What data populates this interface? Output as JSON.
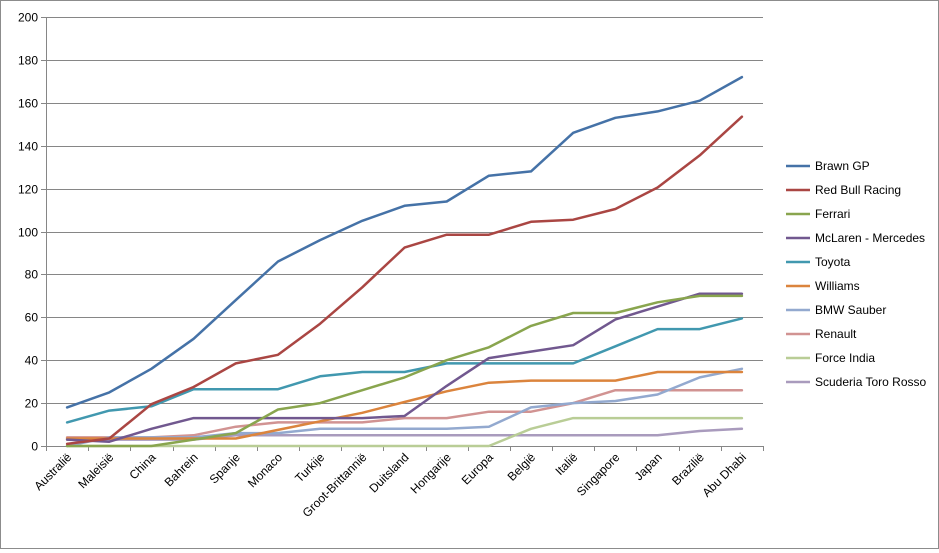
{
  "chart_data": {
    "type": "line",
    "title": "",
    "xlabel": "",
    "ylabel": "",
    "ylim": [
      0,
      200
    ],
    "yticks": [
      0,
      20,
      40,
      60,
      80,
      100,
      120,
      140,
      160,
      180,
      200
    ],
    "grid": "horizontal",
    "legend": "right",
    "categories": [
      "Australië",
      "Maleisië",
      "China",
      "Bahrein",
      "Spanje",
      "Monaco",
      "Turkije",
      "Groot-Brittannië",
      "Duitsland",
      "Hongarije",
      "Europa",
      "België",
      "Italië",
      "Singapore",
      "Japan",
      "Brazilië",
      "Abu Dhabi"
    ],
    "series": [
      {
        "name": "Brawn GP",
        "color": "#4572A7",
        "values": [
          18,
          25,
          36,
          50,
          68,
          86,
          96,
          105,
          112,
          114,
          126,
          128,
          146,
          153,
          156,
          161,
          172
        ]
      },
      {
        "name": "Red Bull Racing",
        "color": "#AA4643",
        "values": [
          1,
          3.5,
          19.5,
          27.5,
          38.5,
          42.5,
          57,
          74,
          92.5,
          98.5,
          98.5,
          104.5,
          105.5,
          110.5,
          120.5,
          135.5,
          153.5
        ]
      },
      {
        "name": "Ferrari",
        "color": "#89A54E",
        "values": [
          0,
          0,
          0,
          3,
          6,
          17,
          20,
          26,
          32,
          40,
          46,
          56,
          62,
          62,
          67,
          70,
          70
        ]
      },
      {
        "name": "McLaren - Mercedes",
        "color": "#71588F",
        "values": [
          3,
          2,
          8,
          13,
          13,
          13,
          13,
          13,
          14,
          28,
          41,
          44,
          47,
          59,
          65,
          71,
          71
        ]
      },
      {
        "name": "Toyota",
        "color": "#4198AF",
        "values": [
          11,
          16.5,
          18.5,
          26.5,
          26.5,
          26.5,
          32.5,
          34.5,
          34.5,
          38.5,
          38.5,
          38.5,
          38.5,
          46.5,
          54.5,
          54.5,
          59.5
        ]
      },
      {
        "name": "Williams",
        "color": "#DB843D",
        "values": [
          3.5,
          3.5,
          3.5,
          3.5,
          3.5,
          7.5,
          11.5,
          15.5,
          20.5,
          25.5,
          29.5,
          30.5,
          30.5,
          30.5,
          34.5,
          34.5,
          34.5
        ]
      },
      {
        "name": "BMW Sauber",
        "color": "#93A9CF",
        "values": [
          0,
          4,
          4,
          4,
          6,
          6,
          8,
          8,
          8,
          8,
          9,
          18,
          20,
          21,
          24,
          32,
          36
        ]
      },
      {
        "name": "Renault",
        "color": "#D19392",
        "values": [
          4,
          4,
          4,
          5,
          9,
          11,
          11,
          11,
          13,
          13,
          16,
          16,
          20,
          26,
          26,
          26,
          26
        ]
      },
      {
        "name": "Force India",
        "color": "#B9CD96",
        "values": [
          0,
          0,
          0,
          0,
          0,
          0,
          0,
          0,
          0,
          0,
          0,
          8,
          13,
          13,
          13,
          13,
          13
        ]
      },
      {
        "name": "Scuderia Toro Rosso",
        "color": "#A99BBD",
        "values": [
          3,
          3,
          3,
          3,
          5,
          5,
          5,
          5,
          5,
          5,
          5,
          5,
          5,
          5,
          5,
          7,
          8
        ]
      }
    ]
  }
}
